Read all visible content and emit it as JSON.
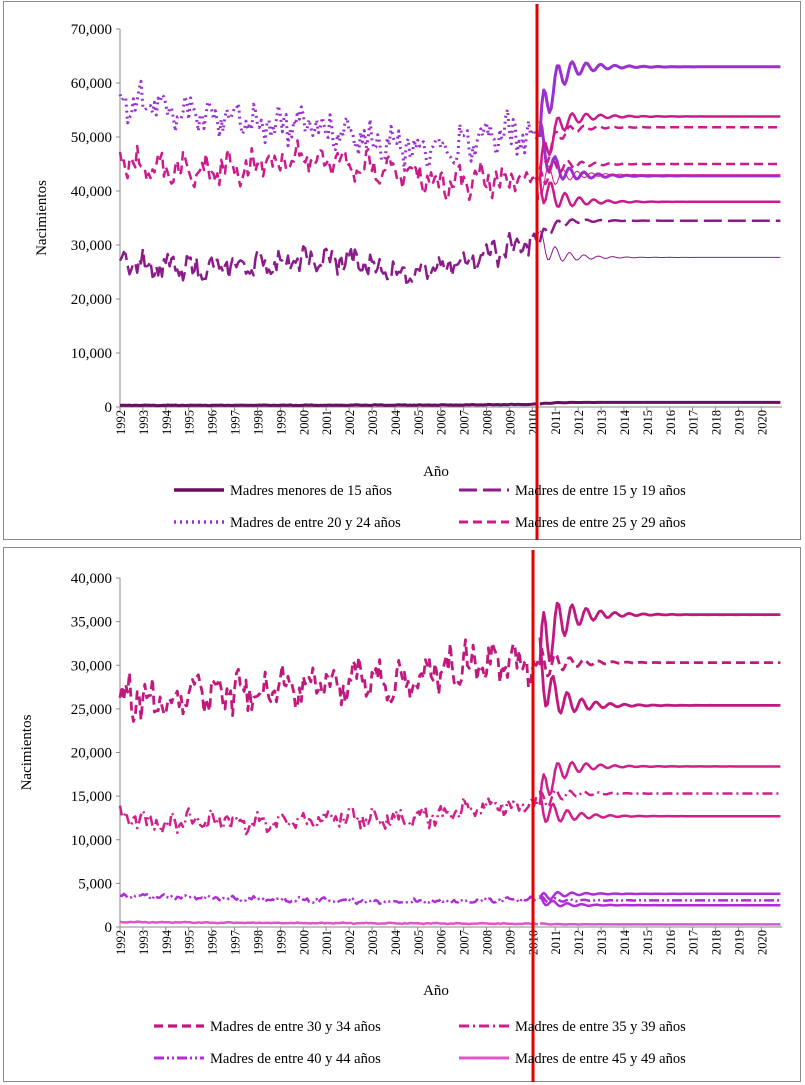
{
  "chart_data": [
    {
      "type": "line",
      "title": "",
      "xlabel": "Año",
      "ylabel": "Nacimientos",
      "ylim": [
        0,
        70000
      ],
      "y_ticks": [
        "0",
        "10,000",
        "20,000",
        "30,000",
        "40,000",
        "50,000",
        "60,000",
        "70,000"
      ],
      "x_ticks": [
        "1992",
        "1993",
        "1994",
        "1995",
        "1996",
        "1997",
        "1998",
        "1999",
        "2000",
        "2001",
        "2002",
        "2003",
        "2004",
        "2005",
        "2006",
        "2007",
        "2008",
        "2009",
        "2010",
        "2011",
        "2012",
        "2013",
        "2014",
        "2015",
        "2016",
        "2017",
        "2018",
        "2019",
        "2020"
      ],
      "x_range": [
        1992,
        2020.9
      ],
      "forecast_start": 2010.33,
      "series": [
        {
          "name": "Madres menores de 15 años",
          "color": "#6a0f5f",
          "dash": "solid",
          "width": 3,
          "hist_mean": [
            [
              1992,
              300
            ],
            [
              2000,
              330
            ],
            [
              2007,
              380
            ],
            [
              2010.33,
              520
            ]
          ],
          "hist_amp": 60,
          "forecasts": [
            {
              "target": 850,
              "amp": 80
            }
          ]
        },
        {
          "name": "Madres de entre 15 y 19 años",
          "color": "#8b1a8b",
          "dash": "long",
          "width": 2.5,
          "hist_mean": [
            [
              1992,
              27000
            ],
            [
              1994,
              26000
            ],
            [
              1996,
              25500
            ],
            [
              1998,
              26500
            ],
            [
              2000,
              27000
            ],
            [
              2002,
              27200
            ],
            [
              2004,
              25000
            ],
            [
              2006,
              25500
            ],
            [
              2007,
              27000
            ],
            [
              2008,
              28500
            ],
            [
              2010.33,
              30500
            ]
          ],
          "hist_amp": 2500,
          "forecasts": [
            {
              "target": 34500,
              "amp": 1500
            },
            {
              "target": 27700,
              "amp": 2500,
              "thin": true
            }
          ]
        },
        {
          "name": "Madres de entre 20 y 24 años",
          "color": "#9b30d0",
          "dash": "dot",
          "width": 3,
          "hist_mean": [
            [
              1992,
              57000
            ],
            [
              1994,
              55500
            ],
            [
              1996,
              54000
            ],
            [
              1998,
              53000
            ],
            [
              2000,
              52500
            ],
            [
              2002,
              51000
            ],
            [
              2004,
              48000
            ],
            [
              2006,
              47000
            ],
            [
              2007,
              48500
            ],
            [
              2008,
              50500
            ],
            [
              2010.33,
              50000
            ]
          ],
          "hist_amp": 4000,
          "forecasts": [
            {
              "target": 63000,
              "amp": 5500,
              "solid": true
            },
            {
              "target": 42800,
              "amp": 3500,
              "solid": true
            }
          ]
        },
        {
          "name": "Madres de entre 25 y 29 años",
          "color": "#cc1a8c",
          "dash": "dash",
          "width": 2.5,
          "hist_mean": [
            [
              1992,
              45500
            ],
            [
              1994,
              44000
            ],
            [
              1996,
              44000
            ],
            [
              1998,
              45000
            ],
            [
              2000,
              46000
            ],
            [
              2002,
              45500
            ],
            [
              2004,
              43500
            ],
            [
              2006,
              42000
            ],
            [
              2007,
              41500
            ],
            [
              2008,
              42500
            ],
            [
              2010.33,
              42000
            ]
          ],
          "hist_amp": 3000,
          "forecasts": [
            {
              "target": 53800,
              "amp": 4000,
              "solid": true
            },
            {
              "target": 51800,
              "amp": 2500
            },
            {
              "target": 45000,
              "amp": 2500
            },
            {
              "target": 38000,
              "amp": 3500,
              "solid": true
            },
            {
              "target": 43000,
              "amp": 3000,
              "thin": true
            }
          ]
        }
      ]
    },
    {
      "type": "line",
      "title": "",
      "xlabel": "Año",
      "ylabel": "Nacimientos",
      "ylim": [
        0,
        40000
      ],
      "y_ticks": [
        "0",
        "5,000",
        "10,000",
        "15,000",
        "20,000",
        "25,000",
        "30,000",
        "35,000",
        "40,000"
      ],
      "x_ticks": [
        "1992",
        "1993",
        "1994",
        "1995",
        "1996",
        "1997",
        "1998",
        "1999",
        "2000",
        "2001",
        "2002",
        "2003",
        "2004",
        "2005",
        "2006",
        "2007",
        "2008",
        "2009",
        "2010",
        "2011",
        "2012",
        "2013",
        "2014",
        "2015",
        "2016",
        "2017",
        "2018",
        "2019",
        "2020"
      ],
      "x_range": [
        1992,
        2020.9
      ],
      "forecast_start": 2010.33,
      "series": [
        {
          "name": "Madres de entre 30 y 34 años",
          "color": "#c2187e",
          "dash": "dash",
          "width": 2.8,
          "hist_mean": [
            [
              1992,
              26500
            ],
            [
              1994,
              26000
            ],
            [
              1996,
              27000
            ],
            [
              1998,
              26800
            ],
            [
              2000,
              27500
            ],
            [
              2002,
              28000
            ],
            [
              2004,
              28500
            ],
            [
              2006,
              29500
            ],
            [
              2008,
              30500
            ],
            [
              2010.33,
              30000
            ]
          ],
          "hist_amp": 2700,
          "forecasts": [
            {
              "target": 35800,
              "amp": 5000,
              "solid": true
            },
            {
              "target": 30300,
              "amp": 2000
            },
            {
              "target": 25400,
              "amp": 3500,
              "solid": true
            }
          ]
        },
        {
          "name": "Madres de entre 35 y 39 años",
          "color": "#d01f8a",
          "dash": "dashdot",
          "width": 2.5,
          "hist_mean": [
            [
              1992,
              12500
            ],
            [
              1994,
              11800
            ],
            [
              1996,
              12300
            ],
            [
              1998,
              12000
            ],
            [
              2000,
              12100
            ],
            [
              2002,
              12600
            ],
            [
              2004,
              12200
            ],
            [
              2006,
              12800
            ],
            [
              2008,
              13800
            ],
            [
              2010.33,
              14000
            ]
          ],
          "hist_amp": 1300,
          "forecasts": [
            {
              "target": 18400,
              "amp": 2500,
              "solid": true
            },
            {
              "target": 15300,
              "amp": 1300
            },
            {
              "target": 12700,
              "amp": 1800,
              "solid": true
            }
          ]
        },
        {
          "name": "Madres de entre 40 y 44 años",
          "color": "#b02cd8",
          "dash": "dashdotdot",
          "width": 2.5,
          "hist_mean": [
            [
              1992,
              3600
            ],
            [
              1996,
              3300
            ],
            [
              2000,
              3100
            ],
            [
              2004,
              2900
            ],
            [
              2008,
              3000
            ],
            [
              2010.33,
              3200
            ]
          ],
          "hist_amp": 300,
          "forecasts": [
            {
              "target": 3800,
              "amp": 600,
              "solid": true
            },
            {
              "target": 3050,
              "amp": 400
            },
            {
              "target": 2500,
              "amp": 500,
              "solid": true
            }
          ]
        },
        {
          "name": "Madres de entre 45 y 49 años",
          "color": "#e055c8",
          "dash": "solid",
          "width": 2.5,
          "hist_mean": [
            [
              1992,
              560
            ],
            [
              2000,
              450
            ],
            [
              2010.33,
              380
            ]
          ],
          "hist_amp": 60,
          "forecasts": [
            {
              "target": 300,
              "amp": 60
            }
          ]
        }
      ]
    }
  ]
}
